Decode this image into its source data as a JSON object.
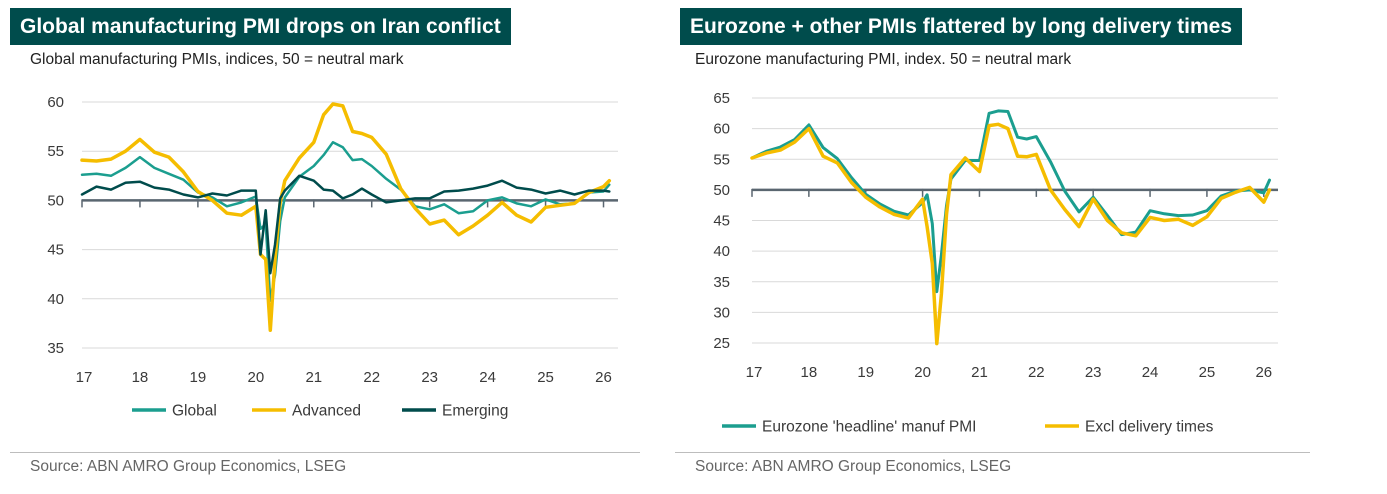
{
  "chart_data": [
    {
      "type": "line",
      "title": "Global manufacturing PMI drops on Iran conflict",
      "subtitle": "Global manufacturing PMIs, indices, 50 = neutral mark",
      "source": "Source: ABN AMRO Group Economics, LSEG",
      "ylim": [
        35,
        60
      ],
      "yticks": [
        35,
        40,
        45,
        50,
        55,
        60
      ],
      "y_tick_labels": [
        "35",
        "40",
        "45",
        "50",
        "55",
        "60"
      ],
      "xlim": [
        2017,
        2026.25
      ],
      "xticks": [
        2017,
        2018,
        2019,
        2020,
        2021,
        2022,
        2023,
        2024,
        2025,
        2026
      ],
      "x_tick_labels": [
        "17",
        "18",
        "19",
        "20",
        "21",
        "22",
        "23",
        "24",
        "25",
        "26"
      ],
      "reference_line": 50,
      "grid": "horizontal",
      "legend_position": "bottom",
      "series": [
        {
          "name": "Global",
          "color": "#1b9e8f",
          "x": [
            2017,
            2017.25,
            2017.5,
            2017.75,
            2018,
            2018.25,
            2018.5,
            2018.75,
            2019,
            2019.25,
            2019.5,
            2019.75,
            2020,
            2020.08,
            2020.17,
            2020.25,
            2020.33,
            2020.42,
            2020.5,
            2020.75,
            2021,
            2021.17,
            2021.33,
            2021.5,
            2021.67,
            2021.83,
            2022,
            2022.25,
            2022.5,
            2022.75,
            2023,
            2023.25,
            2023.5,
            2023.75,
            2024,
            2024.25,
            2024.5,
            2024.75,
            2025,
            2025.25,
            2025.5,
            2025.75,
            2026,
            2026.1
          ],
          "values": [
            52.6,
            52.7,
            52.5,
            53.3,
            54.4,
            53.3,
            52.7,
            52.1,
            50.8,
            50.3,
            49.4,
            49.8,
            50.4,
            47.1,
            47.6,
            39.8,
            42.4,
            47.9,
            50.3,
            52.4,
            53.5,
            54.6,
            55.9,
            55.4,
            54.1,
            54.2,
            53.5,
            52.2,
            51.1,
            49.4,
            49.1,
            49.6,
            48.7,
            48.9,
            50.0,
            50.3,
            49.7,
            49.4,
            50.1,
            49.6,
            49.7,
            50.8,
            50.9,
            51.6
          ]
        },
        {
          "name": "Advanced",
          "color": "#f5bd00",
          "x": [
            2017,
            2017.25,
            2017.5,
            2017.75,
            2018,
            2018.25,
            2018.5,
            2018.75,
            2019,
            2019.25,
            2019.5,
            2019.75,
            2020,
            2020.08,
            2020.17,
            2020.25,
            2020.33,
            2020.42,
            2020.5,
            2020.75,
            2021,
            2021.17,
            2021.33,
            2021.5,
            2021.67,
            2021.83,
            2022,
            2022.25,
            2022.5,
            2022.75,
            2023,
            2023.25,
            2023.5,
            2023.75,
            2024,
            2024.25,
            2024.5,
            2024.75,
            2025,
            2025.25,
            2025.5,
            2025.75,
            2026,
            2026.1
          ],
          "values": [
            54.1,
            54.0,
            54.2,
            55.0,
            56.2,
            54.9,
            54.4,
            52.9,
            50.9,
            50.0,
            48.7,
            48.5,
            49.4,
            44.5,
            44.0,
            36.8,
            44.0,
            49.8,
            52.0,
            54.3,
            55.9,
            58.7,
            59.8,
            59.6,
            57.0,
            56.8,
            56.4,
            54.7,
            51.2,
            49.2,
            47.6,
            48.0,
            46.5,
            47.4,
            48.5,
            49.8,
            48.5,
            47.8,
            49.3,
            49.5,
            49.7,
            50.8,
            51.4,
            52.0
          ]
        },
        {
          "name": "Emerging",
          "color": "#004c4c",
          "x": [
            2017,
            2017.25,
            2017.5,
            2017.75,
            2018,
            2018.25,
            2018.5,
            2018.75,
            2019,
            2019.25,
            2019.5,
            2019.75,
            2020,
            2020.08,
            2020.17,
            2020.25,
            2020.33,
            2020.42,
            2020.5,
            2020.75,
            2021,
            2021.17,
            2021.33,
            2021.5,
            2021.67,
            2021.83,
            2022,
            2022.25,
            2022.5,
            2022.75,
            2023,
            2023.25,
            2023.5,
            2023.75,
            2024,
            2024.25,
            2024.5,
            2024.75,
            2025,
            2025.25,
            2025.5,
            2025.75,
            2026,
            2026.1
          ],
          "values": [
            50.6,
            51.4,
            51.1,
            51.8,
            51.9,
            51.3,
            51.1,
            50.6,
            50.3,
            50.7,
            50.5,
            51.0,
            51.0,
            44.5,
            49.0,
            42.6,
            45.5,
            50.2,
            51.0,
            52.5,
            52.0,
            51.1,
            51.0,
            50.2,
            50.6,
            51.2,
            50.6,
            49.8,
            50.0,
            50.2,
            50.2,
            50.9,
            51.0,
            51.2,
            51.5,
            52.0,
            51.3,
            51.1,
            50.7,
            51.0,
            50.6,
            51.0,
            51.0,
            50.9
          ]
        }
      ]
    },
    {
      "type": "line",
      "title": "Eurozone + other PMIs flattered by long delivery times",
      "subtitle": "Eurozone manufacturing PMI, index. 50 = neutral mark",
      "source": "Source: ABN AMRO Group Economics, LSEG",
      "ylim": [
        25,
        65
      ],
      "yticks": [
        25,
        30,
        35,
        40,
        45,
        50,
        55,
        60,
        65
      ],
      "y_tick_labels": [
        "25",
        "30",
        "35",
        "40",
        "45",
        "50",
        "55",
        "60",
        "65"
      ],
      "xlim": [
        2017,
        2026.25
      ],
      "xticks": [
        2017,
        2018,
        2019,
        2020,
        2021,
        2022,
        2023,
        2024,
        2025,
        2026
      ],
      "x_tick_labels": [
        "17",
        "18",
        "19",
        "20",
        "21",
        "22",
        "23",
        "24",
        "25",
        "26"
      ],
      "reference_line": 50,
      "grid": "horizontal",
      "legend_position": "bottom",
      "series": [
        {
          "name": "Eurozone 'headline' manuf PMI",
          "color": "#1b9e8f",
          "x": [
            2017,
            2017.25,
            2017.5,
            2017.75,
            2018,
            2018.25,
            2018.5,
            2018.75,
            2019,
            2019.25,
            2019.5,
            2019.75,
            2020,
            2020.08,
            2020.17,
            2020.25,
            2020.33,
            2020.42,
            2020.5,
            2020.75,
            2021,
            2021.17,
            2021.33,
            2021.5,
            2021.67,
            2021.83,
            2022,
            2022.25,
            2022.5,
            2022.75,
            2023,
            2023.25,
            2023.5,
            2023.75,
            2024,
            2024.25,
            2024.5,
            2024.75,
            2025,
            2025.25,
            2025.5,
            2025.75,
            2026,
            2026.1
          ],
          "values": [
            55.2,
            56.3,
            57.0,
            58.2,
            60.6,
            56.9,
            55.1,
            52.0,
            49.3,
            47.7,
            46.5,
            45.9,
            47.9,
            49.2,
            44.5,
            33.4,
            39.4,
            47.4,
            51.8,
            54.8,
            54.8,
            62.5,
            62.9,
            62.8,
            58.6,
            58.3,
            58.7,
            54.6,
            49.8,
            46.4,
            48.8,
            45.8,
            42.7,
            43.1,
            46.6,
            46.1,
            45.8,
            45.9,
            46.6,
            49.0,
            49.8,
            50.0,
            49.5,
            51.6
          ]
        },
        {
          "name": "Excl delivery times",
          "color": "#f5bd00",
          "x": [
            2017,
            2017.25,
            2017.5,
            2017.75,
            2018,
            2018.25,
            2018.5,
            2018.75,
            2019,
            2019.25,
            2019.5,
            2019.75,
            2020,
            2020.08,
            2020.17,
            2020.25,
            2020.33,
            2020.42,
            2020.5,
            2020.75,
            2021,
            2021.17,
            2021.33,
            2021.5,
            2021.67,
            2021.83,
            2022,
            2022.25,
            2022.5,
            2022.75,
            2023,
            2023.25,
            2023.5,
            2023.75,
            2024,
            2024.25,
            2024.5,
            2024.75,
            2025,
            2025.25,
            2025.5,
            2025.75,
            2026,
            2026.1
          ],
          "values": [
            55.2,
            56.0,
            56.5,
            57.8,
            60.0,
            55.5,
            54.4,
            51.2,
            48.8,
            47.2,
            46.0,
            45.4,
            48.5,
            44.0,
            38.0,
            24.9,
            33.0,
            46.0,
            52.5,
            55.2,
            53.0,
            60.5,
            60.7,
            60.0,
            55.5,
            55.4,
            55.8,
            50.0,
            46.8,
            44.0,
            48.5,
            45.0,
            43.0,
            42.5,
            45.5,
            45.0,
            45.2,
            44.2,
            45.6,
            48.6,
            49.6,
            50.4,
            48.0,
            50.0
          ]
        }
      ]
    }
  ]
}
